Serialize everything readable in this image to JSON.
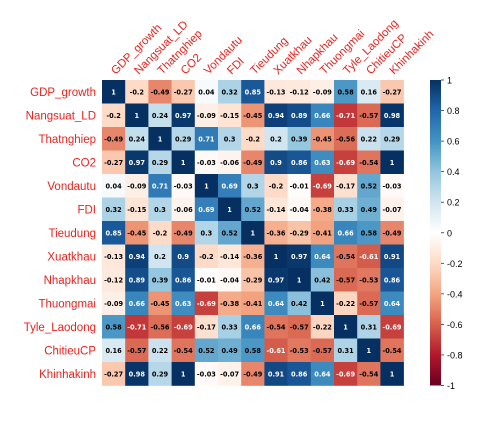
{
  "chart_data": {
    "type": "heatmap",
    "title": "",
    "variables": [
      "GDP_growth",
      "Nangsuat_LD",
      "Thatnghiep",
      "CO2",
      "Vondautu",
      "FDI",
      "Tieudung",
      "Xuatkhau",
      "Nhapkhau",
      "Thuongmai",
      "Tyle_Laodong",
      "ChitieuCP",
      "Khinhakinh"
    ],
    "matrix": [
      [
        1,
        -0.2,
        -0.49,
        -0.27,
        0.04,
        0.32,
        0.85,
        -0.13,
        -0.12,
        -0.09,
        0.58,
        0.16,
        -0.27
      ],
      [
        -0.2,
        1,
        0.24,
        0.97,
        -0.09,
        -0.15,
        -0.45,
        0.94,
        0.89,
        0.66,
        -0.71,
        -0.57,
        0.98
      ],
      [
        -0.49,
        0.24,
        1,
        0.29,
        0.71,
        0.3,
        -0.2,
        0.2,
        0.39,
        -0.45,
        -0.56,
        0.22,
        0.29
      ],
      [
        -0.27,
        0.97,
        0.29,
        1,
        -0.03,
        -0.06,
        -0.49,
        0.9,
        0.86,
        0.63,
        -0.69,
        -0.54,
        1
      ],
      [
        0.04,
        -0.09,
        0.71,
        -0.03,
        1,
        0.69,
        0.3,
        -0.2,
        -0.01,
        -0.69,
        -0.17,
        0.52,
        -0.03
      ],
      [
        0.32,
        -0.15,
        0.3,
        -0.06,
        0.69,
        1,
        0.52,
        -0.14,
        -0.04,
        -0.38,
        0.33,
        0.49,
        -0.07
      ],
      [
        0.85,
        -0.45,
        -0.2,
        -0.49,
        0.3,
        0.52,
        1,
        -0.36,
        -0.29,
        -0.41,
        0.66,
        0.58,
        -0.49
      ],
      [
        -0.13,
        0.94,
        0.2,
        0.9,
        -0.2,
        -0.14,
        -0.36,
        1,
        0.97,
        0.64,
        -0.54,
        -0.61,
        0.91
      ],
      [
        -0.12,
        0.89,
        0.39,
        0.86,
        -0.01,
        -0.04,
        -0.29,
        0.97,
        1,
        0.42,
        -0.57,
        -0.53,
        0.86
      ],
      [
        -0.09,
        0.66,
        -0.45,
        0.63,
        -0.69,
        -0.38,
        -0.41,
        0.64,
        0.42,
        1,
        -0.22,
        -0.57,
        0.64
      ],
      [
        0.58,
        -0.71,
        -0.56,
        -0.69,
        -0.17,
        0.33,
        0.66,
        -0.54,
        -0.57,
        -0.22,
        1,
        0.31,
        -0.69
      ],
      [
        0.16,
        -0.57,
        0.22,
        -0.54,
        0.52,
        0.49,
        0.58,
        -0.61,
        -0.53,
        -0.57,
        0.31,
        1,
        -0.54
      ],
      [
        -0.27,
        0.98,
        0.29,
        1,
        -0.03,
        -0.07,
        -0.49,
        0.91,
        0.86,
        0.64,
        -0.69,
        -0.54,
        1
      ]
    ],
    "value_range": [
      -1,
      1
    ],
    "colorbar_ticks": [
      "1",
      "0.8",
      "0.6",
      "0.4",
      "0.2",
      "0",
      "-0.2",
      "-0.4",
      "-0.6",
      "-0.8",
      "-1"
    ],
    "colorbar_position": "right",
    "label_color": "#e8231e",
    "colors": {
      "positive_max": "#053061",
      "neutral": "#ffffff",
      "negative_max": "#67001f"
    }
  }
}
